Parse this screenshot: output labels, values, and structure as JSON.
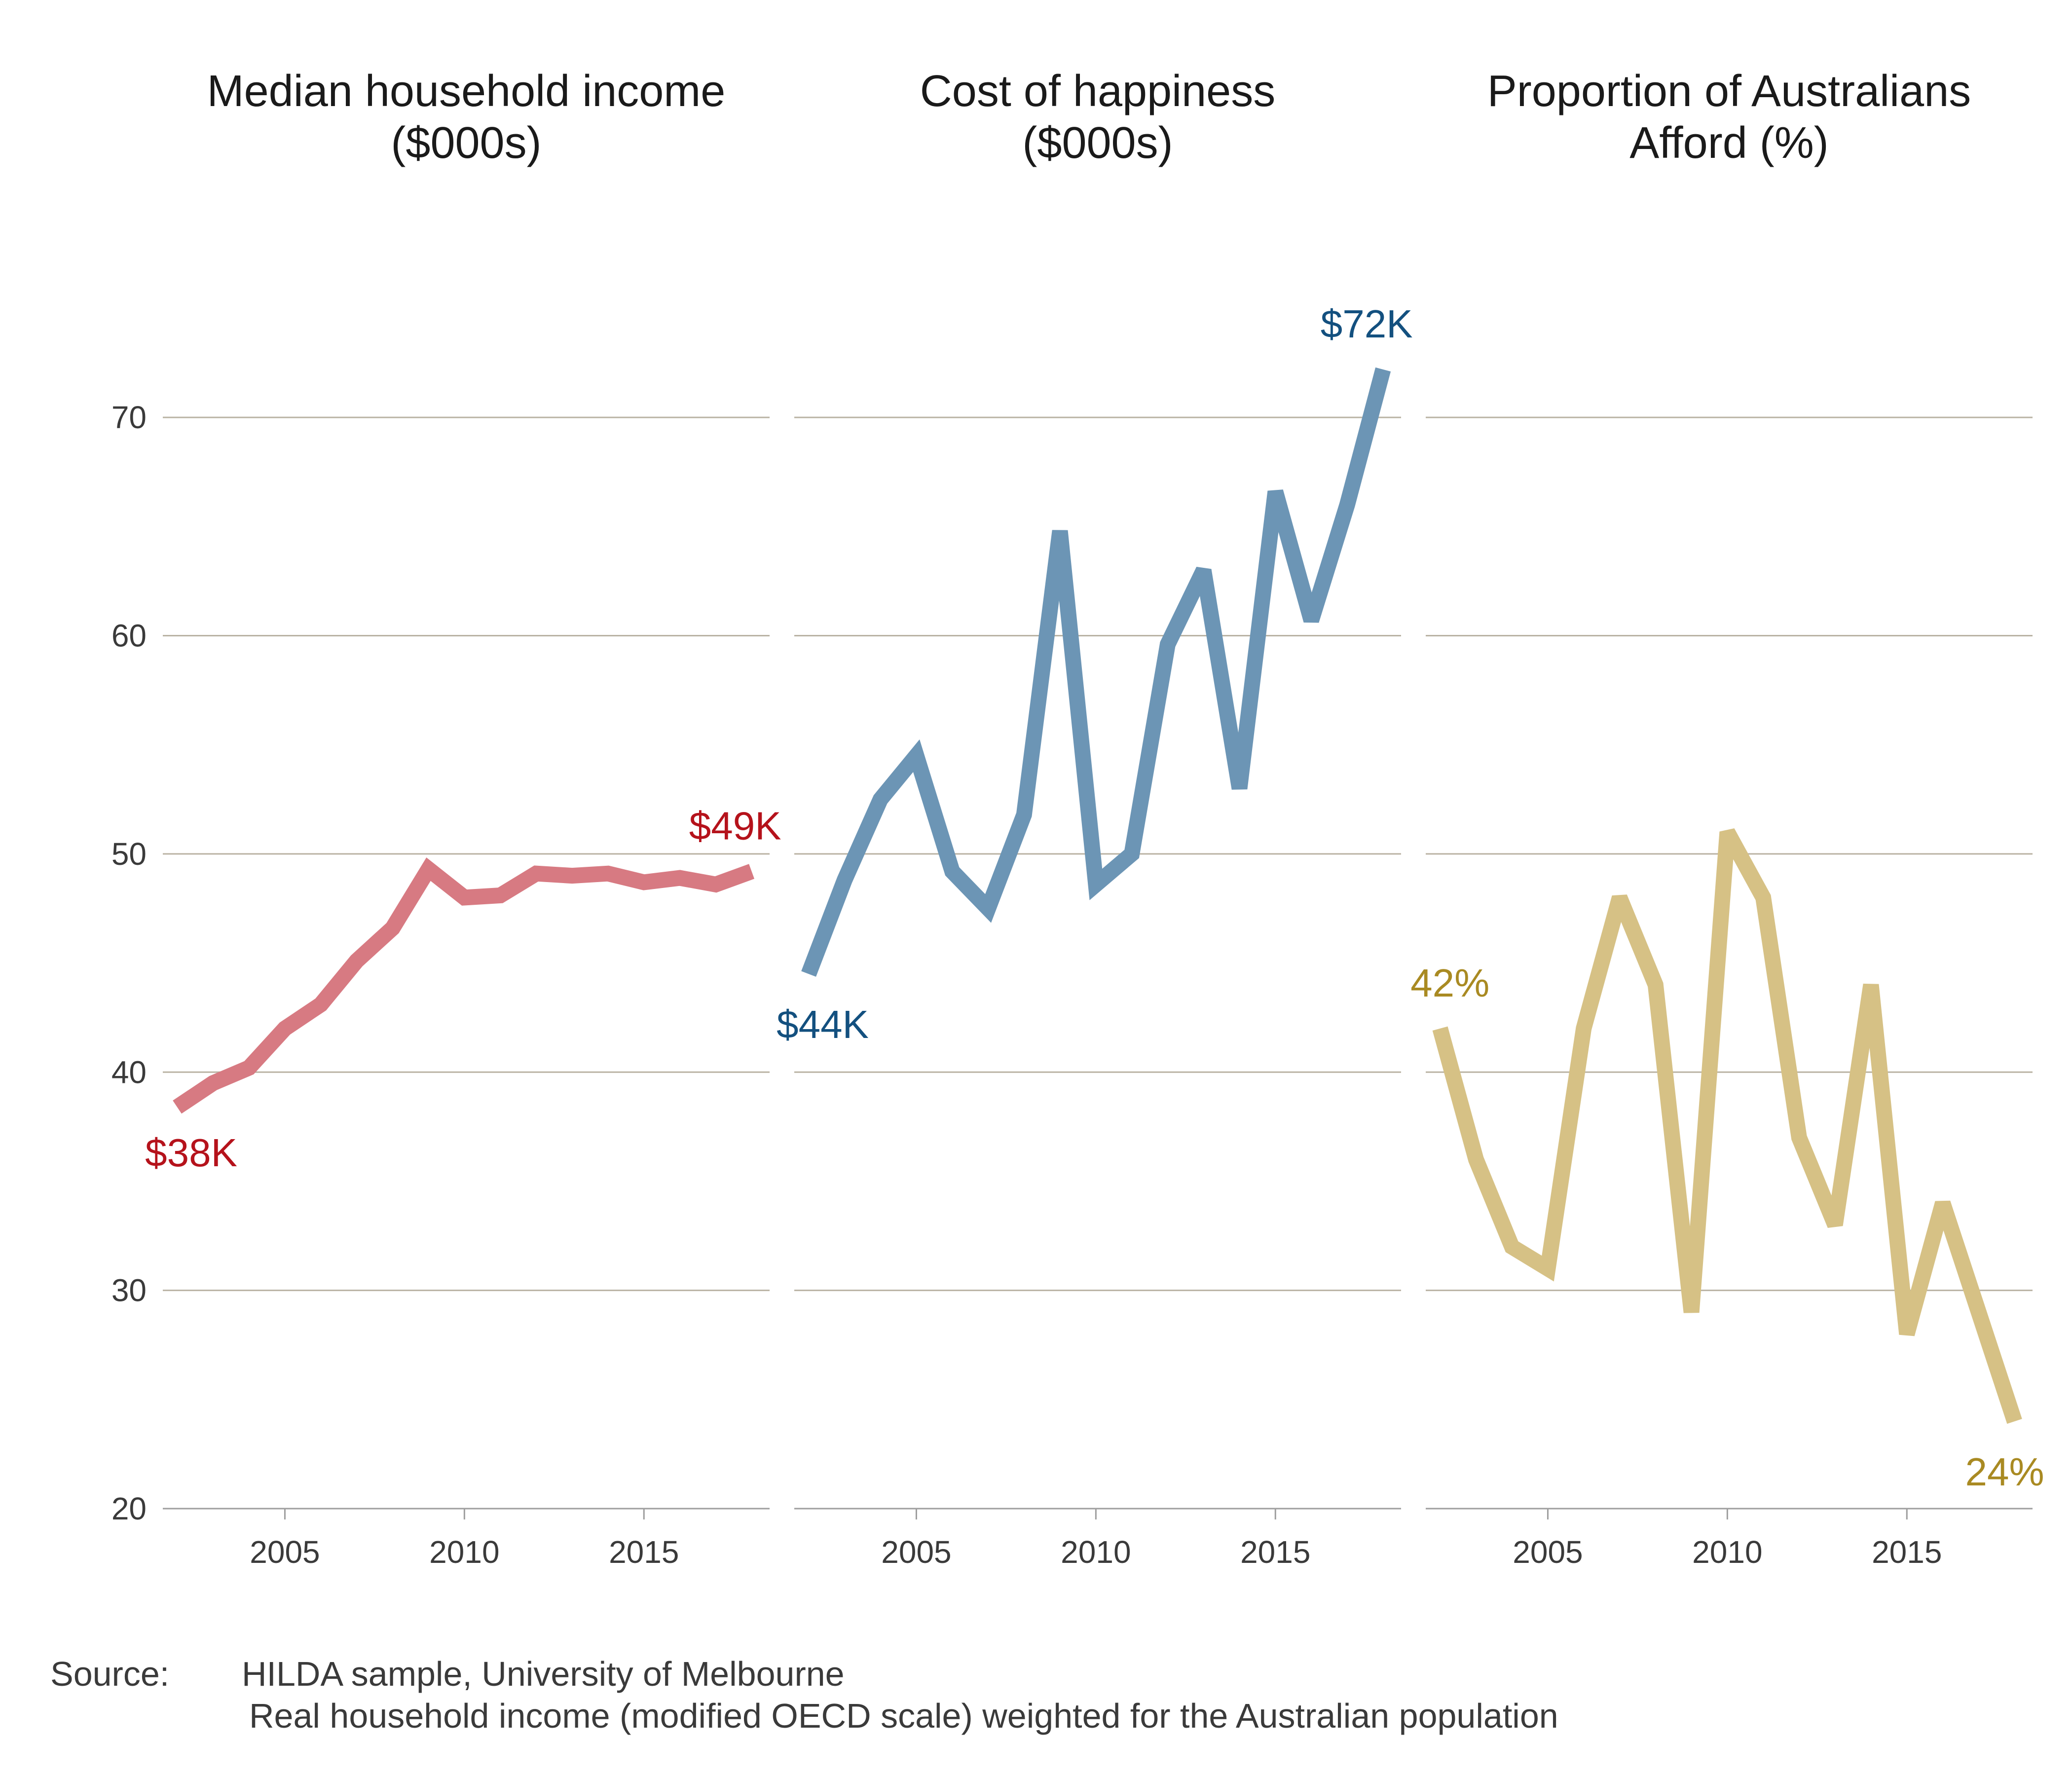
{
  "chart_data": [
    {
      "type": "line",
      "title": "Median household income\n($000s)",
      "color": "#d77a82",
      "label_color": "#b5121b",
      "x": [
        2002,
        2003,
        2004,
        2005,
        2006,
        2007,
        2008,
        2009,
        2010,
        2011,
        2012,
        2013,
        2014,
        2015,
        2016,
        2017,
        2018
      ],
      "values": [
        38.4,
        39.5,
        40.2,
        42.0,
        43.1,
        45.1,
        46.6,
        49.3,
        48.0,
        48.1,
        49.1,
        49.0,
        49.1,
        48.7,
        48.9,
        48.6,
        49.2
      ],
      "start_label": "$38K",
      "end_label": "$49K",
      "ylim": [
        20,
        75
      ],
      "xticks": [
        2005,
        2010,
        2015
      ]
    },
    {
      "type": "line",
      "title": "Cost of happiness\n($000s)",
      "color": "#6c95b5",
      "label_color": "#13507f",
      "x": [
        2002,
        2003,
        2004,
        2005,
        2006,
        2007,
        2008,
        2009,
        2010,
        2011,
        2012,
        2013,
        2014,
        2015,
        2016,
        2017,
        2018
      ],
      "values": [
        44.5,
        48.8,
        52.5,
        54.5,
        49.2,
        47.5,
        51.8,
        64.8,
        48.6,
        50.0,
        59.6,
        63.0,
        53.0,
        66.6,
        60.7,
        66.0,
        72.2
      ],
      "start_label": "$44K",
      "end_label": "$72K",
      "ylim": [
        20,
        75
      ],
      "xticks": [
        2005,
        2010,
        2015
      ]
    },
    {
      "type": "line",
      "title": "Proportion of Australians\nAfford (%)",
      "color": "#d6c185",
      "label_color": "#a98a22",
      "x": [
        2002,
        2003,
        2004,
        2005,
        2006,
        2007,
        2008,
        2009,
        2010,
        2011,
        2012,
        2013,
        2014,
        2015,
        2016,
        2017,
        2018
      ],
      "values": [
        42,
        36,
        32,
        31,
        42,
        48,
        44,
        29,
        51,
        48,
        37,
        33,
        44,
        28,
        34,
        29,
        24
      ],
      "start_label": "42%",
      "end_label": "24%",
      "ylim": [
        20,
        75
      ],
      "xticks": [
        2005,
        2010,
        2015
      ]
    }
  ],
  "y_ticks": [
    20,
    30,
    40,
    50,
    60,
    70
  ],
  "gridline_color": "#bab3a4",
  "source": {
    "label": "Source:",
    "line1": "HILDA sample, University of Melbourne",
    "line2": "Real household income (modified OECD scale) weighted for the Australian population"
  }
}
